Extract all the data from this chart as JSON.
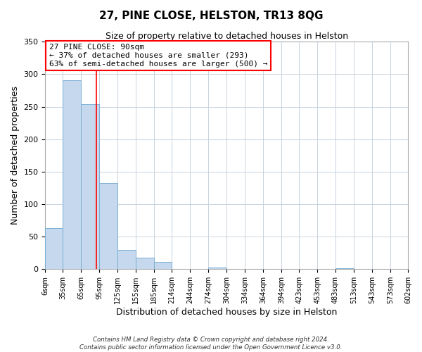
{
  "title": "27, PINE CLOSE, HELSTON, TR13 8QG",
  "subtitle": "Size of property relative to detached houses in Helston",
  "xlabel": "Distribution of detached houses by size in Helston",
  "ylabel": "Number of detached properties",
  "footer_line1": "Contains HM Land Registry data © Crown copyright and database right 2024.",
  "footer_line2": "Contains public sector information licensed under the Open Government Licence v3.0.",
  "bar_edges": [
    6,
    35,
    65,
    95,
    125,
    155,
    185,
    214,
    244,
    274,
    304,
    334,
    364,
    394,
    423,
    453,
    483,
    513,
    543,
    573,
    602
  ],
  "bar_heights": [
    63,
    291,
    254,
    133,
    30,
    18,
    11,
    0,
    0,
    3,
    0,
    0,
    0,
    0,
    0,
    0,
    1,
    0,
    0,
    0
  ],
  "bar_color": "#c5d8ed",
  "bar_edgecolor": "#7bafd4",
  "property_line_x": 90,
  "property_line_color": "red",
  "ylim": [
    0,
    350
  ],
  "yticks": [
    0,
    50,
    100,
    150,
    200,
    250,
    300,
    350
  ],
  "xtick_labels": [
    "6sqm",
    "35sqm",
    "65sqm",
    "95sqm",
    "125sqm",
    "155sqm",
    "185sqm",
    "214sqm",
    "244sqm",
    "274sqm",
    "304sqm",
    "334sqm",
    "364sqm",
    "394sqm",
    "423sqm",
    "453sqm",
    "483sqm",
    "513sqm",
    "543sqm",
    "573sqm",
    "602sqm"
  ],
  "annotation_title": "27 PINE CLOSE: 90sqm",
  "annotation_line1": "← 37% of detached houses are smaller (293)",
  "annotation_line2": "63% of semi-detached houses are larger (500) →",
  "annotation_box_color": "white",
  "annotation_box_edgecolor": "red",
  "grid_color": "#c8d4e0",
  "plot_background": "white",
  "fig_background": "white",
  "title_fontsize": 11,
  "subtitle_fontsize": 9
}
